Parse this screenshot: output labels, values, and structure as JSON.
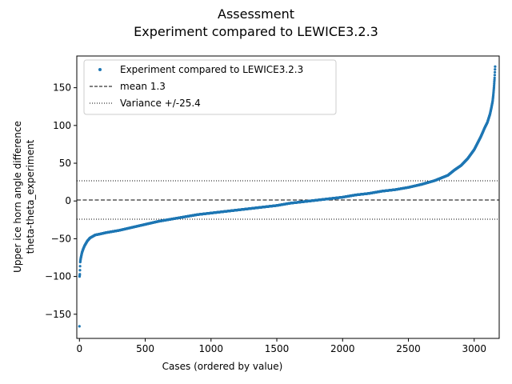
{
  "chart_data": {
    "type": "scatter",
    "title": "Assessment",
    "subtitle": "Experiment compared to LEWICE3.2.3",
    "xlabel": "Cases (ordered by value)",
    "ylabel_line1": "Upper ice horn angle difference",
    "ylabel_line2": "theta-theta_experiment",
    "xlim": [
      -20,
      3190
    ],
    "ylim": [
      -182,
      192
    ],
    "xticks": [
      0,
      500,
      1000,
      1500,
      2000,
      2500,
      3000
    ],
    "yticks": [
      -150,
      -100,
      -50,
      0,
      50,
      100,
      150
    ],
    "grid": false,
    "legend_position": "top-left",
    "series": [
      {
        "name": "Experiment compared to LEWICE3.2.3",
        "kind": "points",
        "color": "#1f77b4",
        "n_points": 3160,
        "profile_x": [
          0,
          1,
          3,
          6,
          10,
          15,
          20,
          30,
          40,
          50,
          60,
          80,
          100,
          120,
          150,
          200,
          300,
          400,
          500,
          600,
          700,
          800,
          900,
          1000,
          1100,
          1200,
          1300,
          1400,
          1500,
          1600,
          1700,
          1800,
          1900,
          2000,
          2100,
          2200,
          2300,
          2400,
          2500,
          2600,
          2700,
          2800,
          2850,
          2900,
          2950,
          3000,
          3050,
          3080,
          3100,
          3120,
          3130,
          3140,
          3145,
          3150,
          3155,
          3159
        ],
        "profile_y": [
          -166,
          -100,
          -97,
          -81,
          -76,
          -72,
          -68,
          -63,
          -59,
          -56,
          -53,
          -49,
          -47,
          -45,
          -44,
          -42,
          -39,
          -35,
          -31,
          -27,
          -24,
          -21,
          -18,
          -16,
          -14,
          -12,
          -10,
          -8,
          -6,
          -3,
          -1,
          1,
          3,
          5,
          8,
          10,
          13,
          15,
          18,
          22,
          27,
          34,
          41,
          47,
          56,
          68,
          85,
          97,
          104,
          115,
          123,
          132,
          140,
          150,
          163,
          178
        ]
      },
      {
        "name": "mean 1.3",
        "kind": "hline",
        "value": 1.3,
        "style": "dashed",
        "color": "#000000"
      },
      {
        "name": "Variance +/-25.4",
        "kind": "hline",
        "values": [
          26.7,
          -24.1
        ],
        "style": "dotted",
        "color": "#000000"
      }
    ]
  }
}
